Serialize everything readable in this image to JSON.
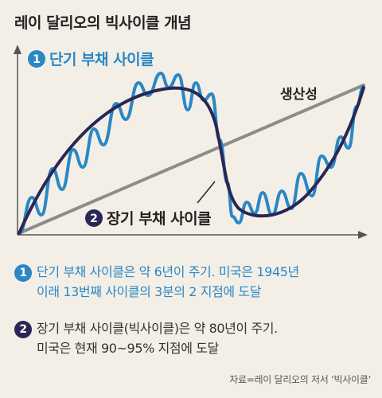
{
  "title": "레이 달리오의 빅사이클 개념",
  "diagram": {
    "short_cycle_number": "1",
    "short_cycle_label": "단기 부채 사이클",
    "long_cycle_number": "2",
    "long_cycle_label": "장기 부채 사이클",
    "productivity_label": "생산성",
    "colors": {
      "short_cycle": "#2a87c6",
      "long_cycle": "#2a2755",
      "productivity": "#8c8c8c",
      "axis": "#555555"
    }
  },
  "notes": [
    {
      "number": "1",
      "line1": "단기 부채 사이클은 약 6년이 주기. 미국은 1945년",
      "line2": "이래 13번째 사이클의 3분의 2 지점에 도달"
    },
    {
      "number": "2",
      "line1": "장기 부채 사이클(빅사이클)은 약 80년이 주기.",
      "line2": "미국은 현재 90~95% 지점에 도달"
    }
  ],
  "source": "자료=레이 달리오의 저서 ‘빅사이클’"
}
